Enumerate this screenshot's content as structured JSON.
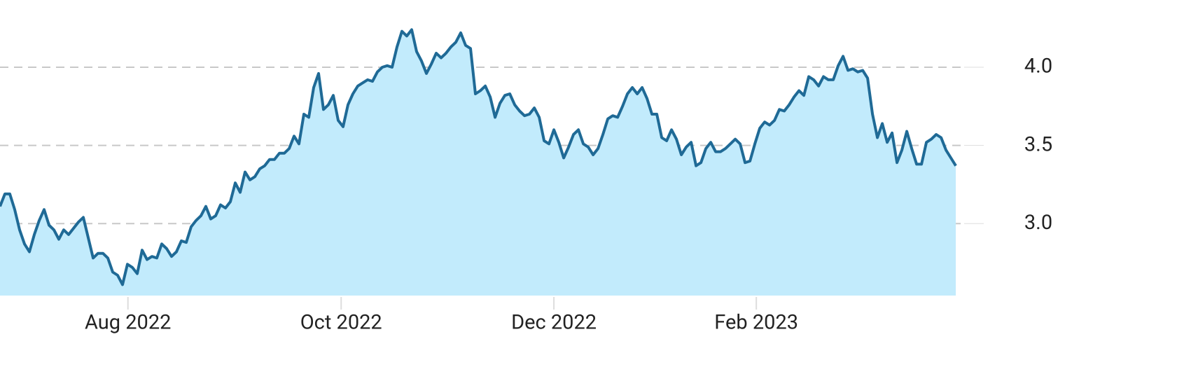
{
  "chart_data": {
    "type": "area",
    "values": [
      3.11,
      3.19,
      3.19,
      3.09,
      2.96,
      2.87,
      2.82,
      2.93,
      3.02,
      3.09,
      2.99,
      2.96,
      2.9,
      2.96,
      2.93,
      2.97,
      3.01,
      3.04,
      2.91,
      2.78,
      2.81,
      2.81,
      2.78,
      2.69,
      2.67,
      2.61,
      2.74,
      2.72,
      2.68,
      2.83,
      2.77,
      2.79,
      2.78,
      2.87,
      2.84,
      2.79,
      2.82,
      2.89,
      2.88,
      2.98,
      3.02,
      3.05,
      3.11,
      3.03,
      3.05,
      3.12,
      3.1,
      3.14,
      3.26,
      3.2,
      3.33,
      3.28,
      3.3,
      3.35,
      3.37,
      3.41,
      3.41,
      3.45,
      3.45,
      3.48,
      3.56,
      3.51,
      3.7,
      3.68,
      3.87,
      3.96,
      3.73,
      3.76,
      3.82,
      3.66,
      3.62,
      3.76,
      3.83,
      3.88,
      3.9,
      3.92,
      3.91,
      3.97,
      4.0,
      4.01,
      4.0,
      4.13,
      4.23,
      4.2,
      4.24,
      4.1,
      4.04,
      3.96,
      4.02,
      4.09,
      4.06,
      4.09,
      4.13,
      4.16,
      4.22,
      4.14,
      4.12,
      3.83,
      3.85,
      3.88,
      3.81,
      3.68,
      3.77,
      3.82,
      3.83,
      3.76,
      3.72,
      3.69,
      3.7,
      3.74,
      3.68,
      3.53,
      3.51,
      3.6,
      3.52,
      3.42,
      3.49,
      3.57,
      3.6,
      3.51,
      3.49,
      3.44,
      3.48,
      3.57,
      3.67,
      3.69,
      3.68,
      3.75,
      3.83,
      3.87,
      3.83,
      3.87,
      3.8,
      3.7,
      3.7,
      3.55,
      3.53,
      3.6,
      3.54,
      3.44,
      3.49,
      3.52,
      3.37,
      3.39,
      3.48,
      3.52,
      3.46,
      3.46,
      3.48,
      3.51,
      3.54,
      3.51,
      3.39,
      3.4,
      3.51,
      3.61,
      3.65,
      3.63,
      3.66,
      3.73,
      3.72,
      3.76,
      3.81,
      3.85,
      3.82,
      3.94,
      3.92,
      3.88,
      3.94,
      3.92,
      3.92,
      4.01,
      4.07,
      3.98,
      3.99,
      3.97,
      3.98,
      3.93,
      3.7,
      3.55,
      3.64,
      3.52,
      3.58,
      3.39,
      3.47,
      3.59,
      3.48,
      3.38,
      3.38,
      3.52,
      3.54,
      3.57,
      3.55,
      3.47,
      3.42,
      3.37
    ],
    "line_color": "#1f6a96",
    "fill_color": "#c2ebfc",
    "xlim": [
      0,
      196.7
    ],
    "xticks": [
      {
        "value": 26.1,
        "label": "Aug 2022"
      },
      {
        "value": 69.6,
        "label": "Oct 2022"
      },
      {
        "value": 113,
        "label": "Dec 2022"
      },
      {
        "value": 154.3,
        "label": "Feb 2023"
      }
    ],
    "ylim": [
      2.54,
      4.43
    ],
    "yticks": [
      {
        "value": 3,
        "label": "3.0"
      },
      {
        "value": 3.5,
        "label": "3.5"
      },
      {
        "value": 4,
        "label": "4.0"
      }
    ],
    "grid": true
  }
}
